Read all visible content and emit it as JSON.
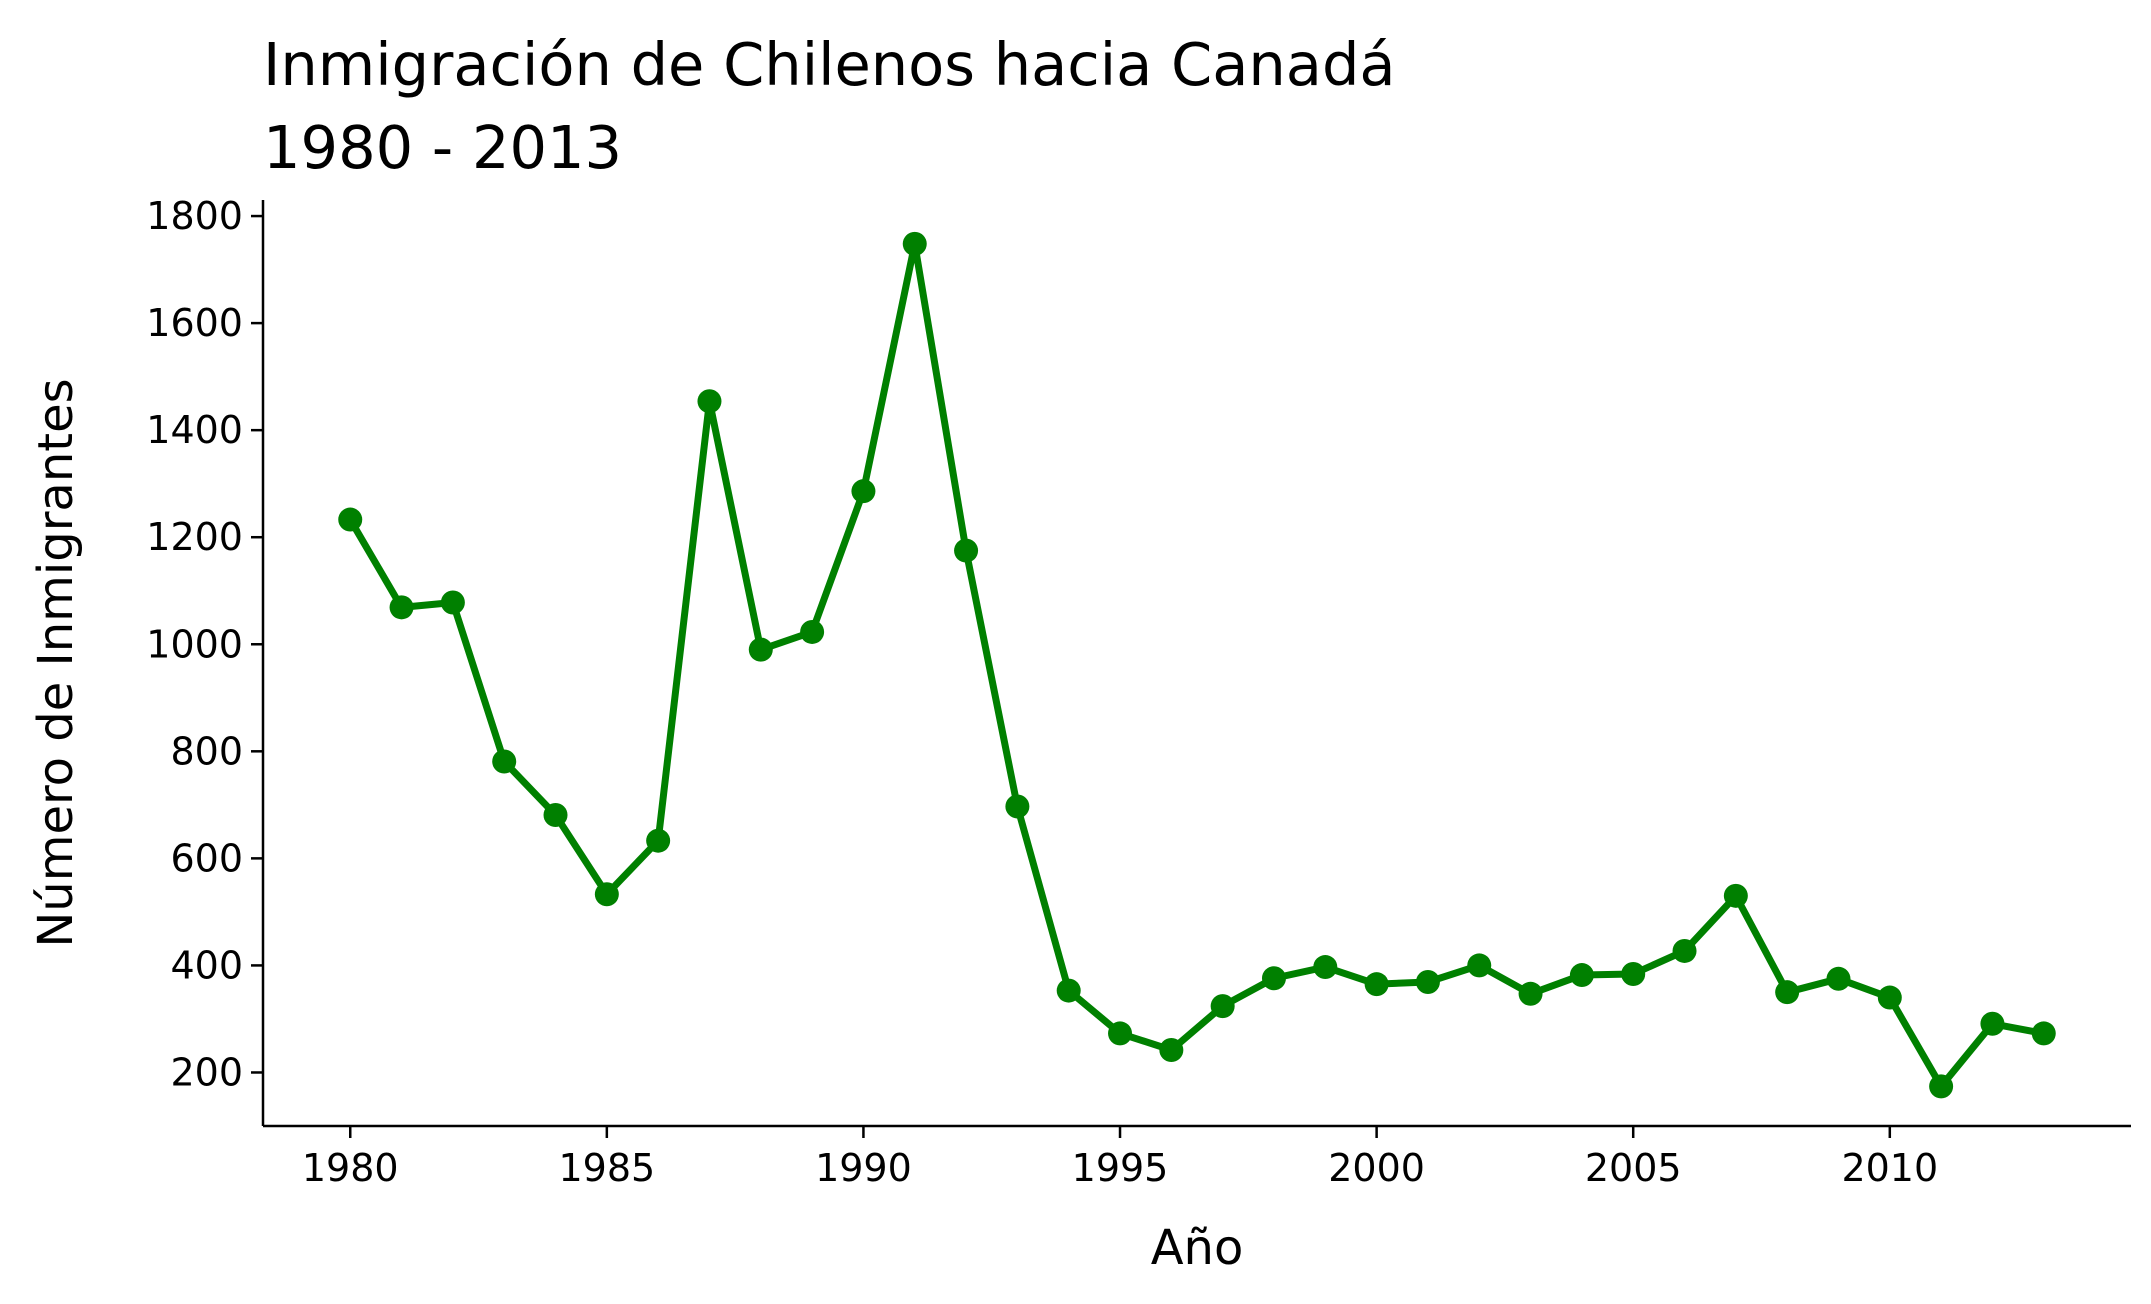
{
  "chart_data": {
    "type": "line",
    "title_line1": "Inmigración de Chilenos hacia Canadá",
    "title_line2": "1980 - 2013",
    "xlabel": "Año",
    "ylabel": "Número de Inmigrantes",
    "xlim": [
      1978.3,
      2014.7
    ],
    "ylim": [
      100,
      1830
    ],
    "x_ticks": [
      1980,
      1985,
      1990,
      1995,
      2000,
      2005,
      2010
    ],
    "y_ticks": [
      200,
      400,
      600,
      800,
      1000,
      1200,
      1400,
      1600,
      1800
    ],
    "grid": false,
    "legend": "none",
    "series": [
      {
        "color": "#008000",
        "marker": "circle",
        "x": [
          1980,
          1981,
          1982,
          1983,
          1984,
          1985,
          1986,
          1987,
          1988,
          1989,
          1990,
          1991,
          1992,
          1993,
          1994,
          1995,
          1996,
          1997,
          1998,
          1999,
          2000,
          2001,
          2002,
          2003,
          2004,
          2005,
          2006,
          2007,
          2008,
          2009,
          2010,
          2011,
          2012,
          2013
        ],
        "values": [
          1233,
          1069,
          1078,
          781,
          681,
          533,
          633,
          1454,
          990,
          1023,
          1286,
          1748,
          1175,
          697,
          353,
          273,
          242,
          324,
          376,
          397,
          365,
          369,
          400,
          347,
          382,
          384,
          427,
          530,
          350,
          375,
          340,
          174,
          291,
          273
        ]
      }
    ]
  }
}
